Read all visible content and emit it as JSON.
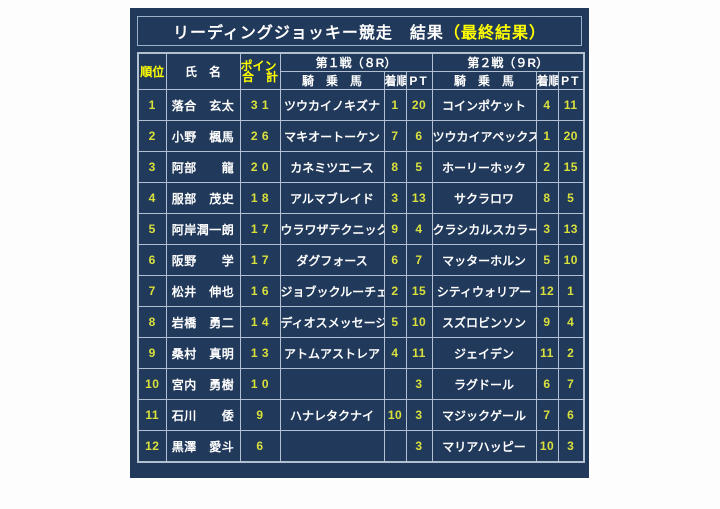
{
  "title": {
    "main": "リーディングジョッキー競走　結果",
    "highlight": "（最終結果）"
  },
  "colors": {
    "panel_background": "#21395a",
    "grid_border": "#b3c0d2",
    "title_highlight": "#ffff00",
    "number_text": "#d9e03c",
    "main_text": "#ffffff",
    "page_background": "#fdfdfd"
  },
  "table": {
    "headers": {
      "rank": "順位",
      "name": "氏　名",
      "total_line1": "ポイント",
      "total_line2": "合　計",
      "race1": "第１戦（８R）",
      "race2": "第２戦（９R）",
      "horse": "騎　乗　馬",
      "position": "着順",
      "pt": "PT"
    },
    "rows": [
      {
        "rank": "1",
        "name": "落合　玄太",
        "total": "3 1",
        "r1_horse": "ツウカイノキズナ",
        "r1_pos": "1",
        "r1_pt": "20",
        "r2_horse": "コインポケット",
        "r2_pos": "4",
        "r2_pt": "11"
      },
      {
        "rank": "2",
        "name": "小野　楓馬",
        "total": "2 6",
        "r1_horse": "マキオートーケン",
        "r1_pos": "7",
        "r1_pt": "6",
        "r2_horse": "ツウカイアペックス",
        "r2_pos": "1",
        "r2_pt": "20"
      },
      {
        "rank": "3",
        "name": "阿部　　龍",
        "total": "2 0",
        "r1_horse": "カネミツエース",
        "r1_pos": "8",
        "r1_pt": "5",
        "r2_horse": "ホーリーホック",
        "r2_pos": "2",
        "r2_pt": "15"
      },
      {
        "rank": "4",
        "name": "服部　茂史",
        "total": "1 8",
        "r1_horse": "アルマブレイド",
        "r1_pos": "3",
        "r1_pt": "13",
        "r2_horse": "サクラロワ",
        "r2_pos": "8",
        "r2_pt": "5"
      },
      {
        "rank": "5",
        "name": "阿岸潤一朗",
        "total": "1 7",
        "r1_horse": "ウラワザテクニック",
        "r1_pos": "9",
        "r1_pt": "4",
        "r2_horse": "クラシカルスカラー",
        "r2_pos": "3",
        "r2_pt": "13"
      },
      {
        "rank": "6",
        "name": "阪野　　学",
        "total": "1 7",
        "r1_horse": "ダグフォース",
        "r1_pos": "6",
        "r1_pt": "7",
        "r2_horse": "マッターホルン",
        "r2_pos": "5",
        "r2_pt": "10"
      },
      {
        "rank": "7",
        "name": "松井　伸也",
        "total": "1 6",
        "r1_horse": "ジョブックルーチェ",
        "r1_pos": "2",
        "r1_pt": "15",
        "r2_horse": "シティウォリアー",
        "r2_pos": "12",
        "r2_pt": "1"
      },
      {
        "rank": "8",
        "name": "岩橋　勇二",
        "total": "1 4",
        "r1_horse": "ディオスメッセージ",
        "r1_pos": "5",
        "r1_pt": "10",
        "r2_horse": "スズロビンソン",
        "r2_pos": "9",
        "r2_pt": "4"
      },
      {
        "rank": "9",
        "name": "桑村　真明",
        "total": "1 3",
        "r1_horse": "アトムアストレア",
        "r1_pos": "4",
        "r1_pt": "11",
        "r2_horse": "ジェイデン",
        "r2_pos": "11",
        "r2_pt": "2"
      },
      {
        "rank": "10",
        "name": "宮内　勇樹",
        "total": "1 0",
        "r1_horse": "",
        "r1_pos": "",
        "r1_pt": "3",
        "r2_horse": "ラグドール",
        "r2_pos": "6",
        "r2_pt": "7"
      },
      {
        "rank": "11",
        "name": "石川　　倭",
        "total": "9",
        "r1_horse": "ハナレタクナイ",
        "r1_pos": "10",
        "r1_pt": "3",
        "r2_horse": "マジックゲール",
        "r2_pos": "7",
        "r2_pt": "6"
      },
      {
        "rank": "12",
        "name": "黒澤　愛斗",
        "total": "6",
        "r1_horse": "",
        "r1_pos": "",
        "r1_pt": "3",
        "r2_horse": "マリアハッピー",
        "r2_pos": "10",
        "r2_pt": "3"
      }
    ]
  }
}
